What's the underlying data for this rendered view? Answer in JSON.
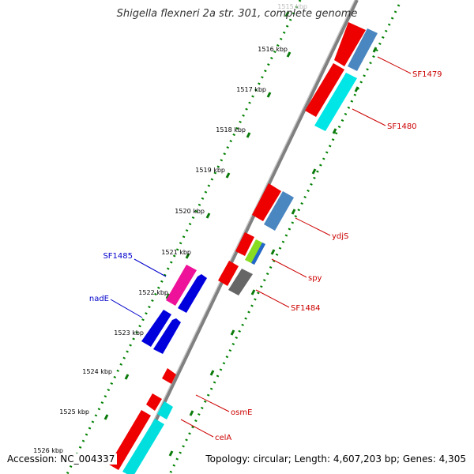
{
  "title": "Shigella flexneri 2a str. 301, complete genome",
  "accession": "Accession: NC_004337",
  "topology": "Topology: circular; Length: 4,607,203 bp; Genes: 4,305",
  "ticks": [
    "1515 kbp",
    "1516 kbp",
    "1517 kbp",
    "1518 kbp",
    "1519 kbp",
    "1520 kbp",
    "1521 kbp",
    "1522 kbp",
    "1523 kbp",
    "1524 kbp",
    "1525 kbp",
    "1526 kbp"
  ],
  "genes": [
    {
      "label": "SF1479",
      "color": "#cc0000"
    },
    {
      "label": "SF1480",
      "color": "#cc0000"
    },
    {
      "label": "ydjS",
      "color": "#cc0000"
    },
    {
      "label": "spy",
      "color": "#cc0000"
    },
    {
      "label": "SF1484",
      "color": "#cc0000"
    },
    {
      "label": "osmE",
      "color": "#cc0000"
    },
    {
      "label": "celA",
      "color": "#cc0000"
    },
    {
      "label": "SF1485",
      "color": "#0000cc"
    },
    {
      "label": "nadE",
      "color": "#0000cc"
    }
  ],
  "colors": {
    "backbone": "#808080",
    "gc_dots": "#008000",
    "tick_green": "#0a7a0a",
    "red": "#ee0000",
    "steelblue": "#4a86c0",
    "cyan": "#00dede",
    "blue": "#0000dd",
    "magenta": "#ee1199",
    "gray": "#666666",
    "lime": "#88dd22"
  }
}
